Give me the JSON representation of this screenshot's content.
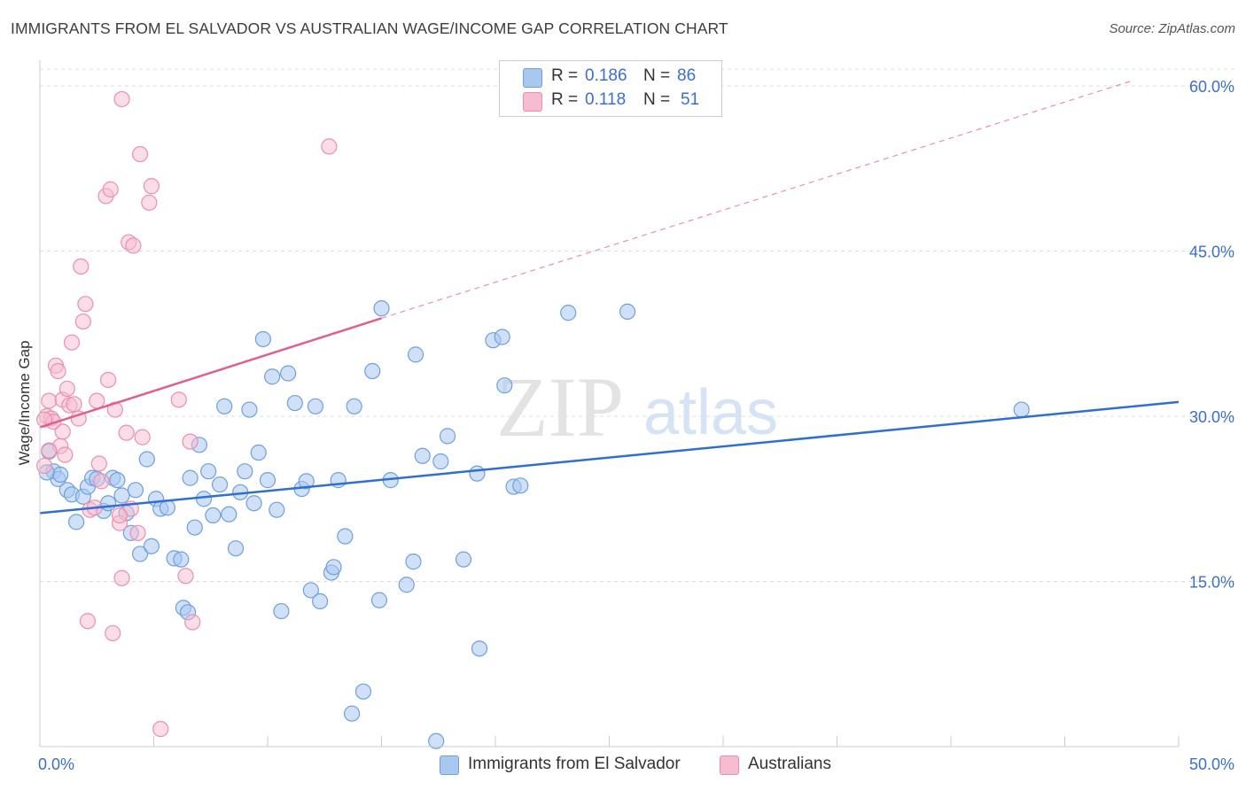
{
  "title": "IMMIGRANTS FROM EL SALVADOR VS AUSTRALIAN WAGE/INCOME GAP CORRELATION CHART",
  "source": "Source: ZipAtlas.com",
  "watermark": {
    "zip": "ZIP",
    "atlas": "atlas"
  },
  "legend": {
    "rows": [
      {
        "r_label": "R =",
        "r_value": "0.186",
        "n_label": "N =",
        "n_value": "86"
      },
      {
        "r_label": "R =",
        "r_value": "0.118",
        "n_label": "N =",
        "n_value": "51"
      }
    ]
  },
  "bottom_legend": [
    "Immigrants from El Salvador",
    "Australians"
  ],
  "colors": {
    "blue_fill": "#a9c8f0",
    "blue_stroke": "#6f9fdf",
    "blue_line": "#2f6fd0",
    "pink_fill": "#f6bcd0",
    "pink_stroke": "#ec8fae",
    "pink_line": "#e0608a",
    "axis_text": "#3a6fd0",
    "grid": "#dddddd"
  },
  "chart_data": {
    "type": "scatter",
    "title": "IMMIGRANTS FROM EL SALVADOR VS AUSTRALIAN WAGE/INCOME GAP CORRELATION CHART",
    "xlabel": "",
    "ylabel": "Wage/Income Gap",
    "xlim": [
      0,
      50
    ],
    "ylim": [
      0,
      60
    ],
    "x_tick_labels": [
      "0.0%",
      "50.0%"
    ],
    "y_ticks": [
      15,
      30,
      45,
      60
    ],
    "y_tick_labels": [
      "15.0%",
      "30.0%",
      "45.0%",
      "60.0%"
    ],
    "series": [
      {
        "name": "Immigrants from El Salvador",
        "R": 0.186,
        "N": 86,
        "trend": {
          "x": [
            0,
            50
          ],
          "y": [
            21.2,
            31.3
          ]
        },
        "points": [
          [
            0.4,
            26.8
          ],
          [
            0.6,
            25.0
          ],
          [
            0.8,
            24.3
          ],
          [
            0.9,
            24.7
          ],
          [
            1.2,
            23.3
          ],
          [
            1.4,
            22.9
          ],
          [
            1.6,
            20.4
          ],
          [
            1.9,
            22.7
          ],
          [
            2.1,
            23.6
          ],
          [
            2.3,
            24.4
          ],
          [
            2.5,
            24.3
          ],
          [
            2.8,
            21.4
          ],
          [
            3.0,
            22.1
          ],
          [
            3.2,
            24.4
          ],
          [
            3.4,
            24.2
          ],
          [
            3.6,
            22.8
          ],
          [
            3.8,
            21.2
          ],
          [
            4.0,
            19.4
          ],
          [
            4.2,
            23.3
          ],
          [
            4.4,
            17.5
          ],
          [
            4.7,
            26.1
          ],
          [
            4.9,
            18.2
          ],
          [
            5.1,
            22.5
          ],
          [
            5.3,
            21.6
          ],
          [
            5.6,
            21.7
          ],
          [
            5.9,
            17.1
          ],
          [
            6.2,
            17.0
          ],
          [
            6.3,
            12.6
          ],
          [
            6.5,
            12.2
          ],
          [
            6.6,
            24.4
          ],
          [
            6.8,
            19.9
          ],
          [
            7.0,
            27.4
          ],
          [
            7.2,
            22.5
          ],
          [
            7.4,
            25.0
          ],
          [
            7.6,
            21.0
          ],
          [
            7.9,
            23.8
          ],
          [
            8.1,
            30.9
          ],
          [
            8.3,
            21.1
          ],
          [
            8.6,
            18.0
          ],
          [
            8.8,
            23.1
          ],
          [
            9.0,
            25.0
          ],
          [
            9.2,
            30.6
          ],
          [
            9.4,
            22.1
          ],
          [
            9.6,
            26.7
          ],
          [
            9.8,
            37.0
          ],
          [
            10.0,
            24.2
          ],
          [
            10.2,
            33.6
          ],
          [
            10.4,
            21.5
          ],
          [
            10.6,
            12.3
          ],
          [
            10.9,
            33.9
          ],
          [
            11.2,
            31.2
          ],
          [
            11.5,
            23.4
          ],
          [
            11.7,
            24.1
          ],
          [
            11.9,
            14.2
          ],
          [
            12.1,
            30.9
          ],
          [
            12.3,
            13.2
          ],
          [
            12.8,
            15.8
          ],
          [
            12.9,
            16.3
          ],
          [
            13.1,
            24.2
          ],
          [
            13.4,
            19.1
          ],
          [
            13.7,
            3.0
          ],
          [
            13.8,
            30.9
          ],
          [
            14.2,
            5.0
          ],
          [
            14.6,
            34.1
          ],
          [
            15.0,
            39.8
          ],
          [
            14.9,
            13.3
          ],
          [
            15.4,
            24.2
          ],
          [
            16.1,
            14.7
          ],
          [
            16.4,
            16.8
          ],
          [
            16.5,
            35.6
          ],
          [
            16.8,
            26.4
          ],
          [
            17.4,
            0.5
          ],
          [
            17.6,
            25.9
          ],
          [
            17.9,
            28.2
          ],
          [
            18.6,
            17.0
          ],
          [
            19.2,
            24.8
          ],
          [
            19.3,
            8.9
          ],
          [
            19.9,
            36.9
          ],
          [
            20.3,
            37.2
          ],
          [
            20.4,
            32.8
          ],
          [
            20.8,
            23.6
          ],
          [
            21.1,
            23.7
          ],
          [
            23.2,
            39.4
          ],
          [
            25.8,
            39.5
          ],
          [
            43.1,
            30.6
          ],
          [
            0.3,
            24.9
          ]
        ]
      },
      {
        "name": "Australians",
        "R": 0.118,
        "N": 51,
        "trend": {
          "x": [
            0,
            15
          ],
          "y": [
            29.0,
            38.9
          ]
        },
        "trend_extended": {
          "x": [
            15,
            48
          ],
          "y": [
            38.9,
            60.5
          ]
        },
        "points": [
          [
            0.2,
            25.5
          ],
          [
            0.3,
            30.0
          ],
          [
            0.4,
            31.4
          ],
          [
            0.5,
            29.8
          ],
          [
            0.6,
            29.5
          ],
          [
            0.7,
            34.6
          ],
          [
            0.8,
            34.1
          ],
          [
            0.9,
            27.3
          ],
          [
            1.0,
            31.5
          ],
          [
            1.1,
            26.5
          ],
          [
            1.2,
            32.5
          ],
          [
            1.3,
            31.0
          ],
          [
            1.4,
            36.7
          ],
          [
            1.5,
            31.1
          ],
          [
            1.7,
            29.8
          ],
          [
            1.8,
            43.6
          ],
          [
            1.9,
            38.6
          ],
          [
            2.0,
            40.2
          ],
          [
            2.1,
            11.4
          ],
          [
            2.2,
            21.5
          ],
          [
            2.4,
            21.7
          ],
          [
            2.5,
            31.4
          ],
          [
            2.7,
            24.1
          ],
          [
            2.9,
            50.0
          ],
          [
            3.0,
            33.3
          ],
          [
            3.1,
            50.6
          ],
          [
            3.2,
            10.3
          ],
          [
            3.3,
            30.6
          ],
          [
            3.6,
            58.8
          ],
          [
            3.5,
            20.3
          ],
          [
            3.6,
            15.3
          ],
          [
            3.8,
            28.5
          ],
          [
            3.9,
            45.8
          ],
          [
            4.1,
            45.5
          ],
          [
            4.0,
            21.6
          ],
          [
            4.3,
            19.4
          ],
          [
            4.4,
            53.8
          ],
          [
            4.5,
            28.1
          ],
          [
            4.8,
            49.4
          ],
          [
            4.9,
            50.9
          ],
          [
            5.3,
            1.6
          ],
          [
            6.1,
            31.5
          ],
          [
            6.4,
            15.5
          ],
          [
            6.6,
            27.7
          ],
          [
            6.7,
            11.3
          ],
          [
            12.7,
            54.5
          ],
          [
            0.2,
            29.7
          ],
          [
            0.4,
            26.9
          ],
          [
            1.0,
            28.6
          ],
          [
            2.6,
            25.7
          ],
          [
            3.5,
            21.0
          ]
        ]
      }
    ]
  }
}
